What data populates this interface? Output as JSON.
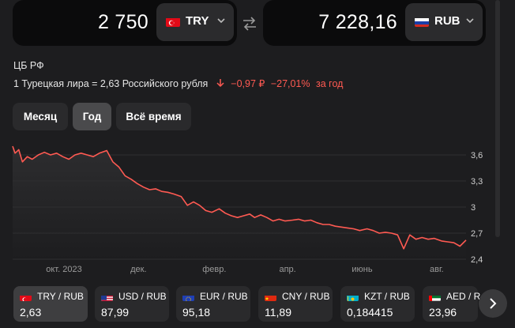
{
  "converter": {
    "from": {
      "amount": "2 750",
      "code": "TRY",
      "flag": "turkey-flag-icon"
    },
    "swap_icon": "swap-arrows-icon",
    "to": {
      "amount": "7 228,16",
      "code": "RUB",
      "flag": "russia-flag-icon"
    }
  },
  "source": "ЦБ РФ",
  "rate": {
    "text": "1 Турецкая лира = 2,63 Российского рубля",
    "change_abs": "−0,97 ₽",
    "change_pct": "−27,01%",
    "period": "за год",
    "change_color": "#ff5a52"
  },
  "periods": [
    {
      "label": "Месяц",
      "active": false
    },
    {
      "label": "Год",
      "active": true
    },
    {
      "label": "Всё время",
      "active": false
    }
  ],
  "chart_data": {
    "type": "area",
    "title": "",
    "xlabel": "",
    "ylabel": "",
    "ylim": [
      2.4,
      3.7
    ],
    "y_ticks": [
      "3,6",
      "3,3",
      "3",
      "2,7",
      "2,4"
    ],
    "y_tick_values": [
      3.6,
      3.3,
      3.0,
      2.7,
      2.4
    ],
    "x_ticks": [
      "окт. 2023",
      "дек.",
      "февр.",
      "апр.",
      "июнь",
      "авг."
    ],
    "x_tick_dates": [
      "2023-10-01",
      "2023-12-01",
      "2024-02-01",
      "2024-04-01",
      "2024-06-01",
      "2024-08-01"
    ],
    "grid": true,
    "legend": "none",
    "line_color": "#ff5a52",
    "series": [
      {
        "x": [
          "2023-08-20",
          "2023-08-22",
          "2023-08-25",
          "2023-08-28",
          "2023-09-01",
          "2023-09-05",
          "2023-09-10",
          "2023-09-15",
          "2023-09-20",
          "2023-09-25",
          "2023-09-30",
          "2023-10-05",
          "2023-10-10",
          "2023-10-15",
          "2023-10-20",
          "2023-10-25",
          "2023-10-30",
          "2023-11-05",
          "2023-11-10",
          "2023-11-15",
          "2023-11-20",
          "2023-11-25",
          "2023-11-30",
          "2023-12-05",
          "2023-12-10",
          "2023-12-15",
          "2023-12-20",
          "2023-12-25",
          "2023-12-30",
          "2024-01-05",
          "2024-01-10",
          "2024-01-15",
          "2024-01-20",
          "2024-01-25",
          "2024-01-30",
          "2024-02-05",
          "2024-02-10",
          "2024-02-15",
          "2024-02-20",
          "2024-02-25",
          "2024-03-01",
          "2024-03-05",
          "2024-03-10",
          "2024-03-15",
          "2024-03-20",
          "2024-03-25",
          "2024-03-30",
          "2024-04-05",
          "2024-04-10",
          "2024-04-15",
          "2024-04-20",
          "2024-04-25",
          "2024-04-30",
          "2024-05-05",
          "2024-05-10",
          "2024-05-15",
          "2024-05-20",
          "2024-05-25",
          "2024-05-30",
          "2024-06-05",
          "2024-06-10",
          "2024-06-15",
          "2024-06-20",
          "2024-06-25",
          "2024-06-30",
          "2024-07-05",
          "2024-07-10",
          "2024-07-15",
          "2024-07-20",
          "2024-07-25",
          "2024-07-30",
          "2024-08-05",
          "2024-08-10",
          "2024-08-15",
          "2024-08-20",
          "2024-08-25"
        ],
        "values": [
          3.7,
          3.62,
          3.66,
          3.52,
          3.58,
          3.55,
          3.6,
          3.63,
          3.6,
          3.62,
          3.58,
          3.55,
          3.6,
          3.62,
          3.6,
          3.58,
          3.62,
          3.65,
          3.52,
          3.46,
          3.36,
          3.32,
          3.27,
          3.23,
          3.2,
          3.21,
          3.18,
          3.17,
          3.15,
          3.12,
          3.02,
          3.06,
          3.02,
          2.96,
          2.94,
          2.98,
          2.93,
          2.9,
          2.88,
          2.9,
          2.92,
          2.88,
          2.91,
          2.88,
          2.84,
          2.86,
          2.84,
          2.85,
          2.86,
          2.84,
          2.85,
          2.82,
          2.8,
          2.8,
          2.78,
          2.77,
          2.76,
          2.75,
          2.73,
          2.75,
          2.73,
          2.7,
          2.71,
          2.7,
          2.68,
          2.52,
          2.68,
          2.63,
          2.65,
          2.63,
          2.64,
          2.61,
          2.6,
          2.59,
          2.55,
          2.62
        ]
      }
    ]
  },
  "tiles": [
    {
      "pair": "TRY / RUB",
      "value": "2,63",
      "flag": "turkey-flag-icon",
      "active": true
    },
    {
      "pair": "USD / RUB",
      "value": "87,99",
      "flag": "usa-flag-icon",
      "active": false
    },
    {
      "pair": "EUR / RUB",
      "value": "95,18",
      "flag": "eu-flag-icon",
      "active": false
    },
    {
      "pair": "CNY / RUB",
      "value": "11,89",
      "flag": "china-flag-icon",
      "active": false
    },
    {
      "pair": "KZT / RUB",
      "value": "0,184415",
      "flag": "kazakhstan-flag-icon",
      "active": false
    },
    {
      "pair": "AED / R",
      "value": "23,96",
      "flag": "uae-flag-icon",
      "active": false
    }
  ],
  "next_icon": "chevron-right-icon"
}
